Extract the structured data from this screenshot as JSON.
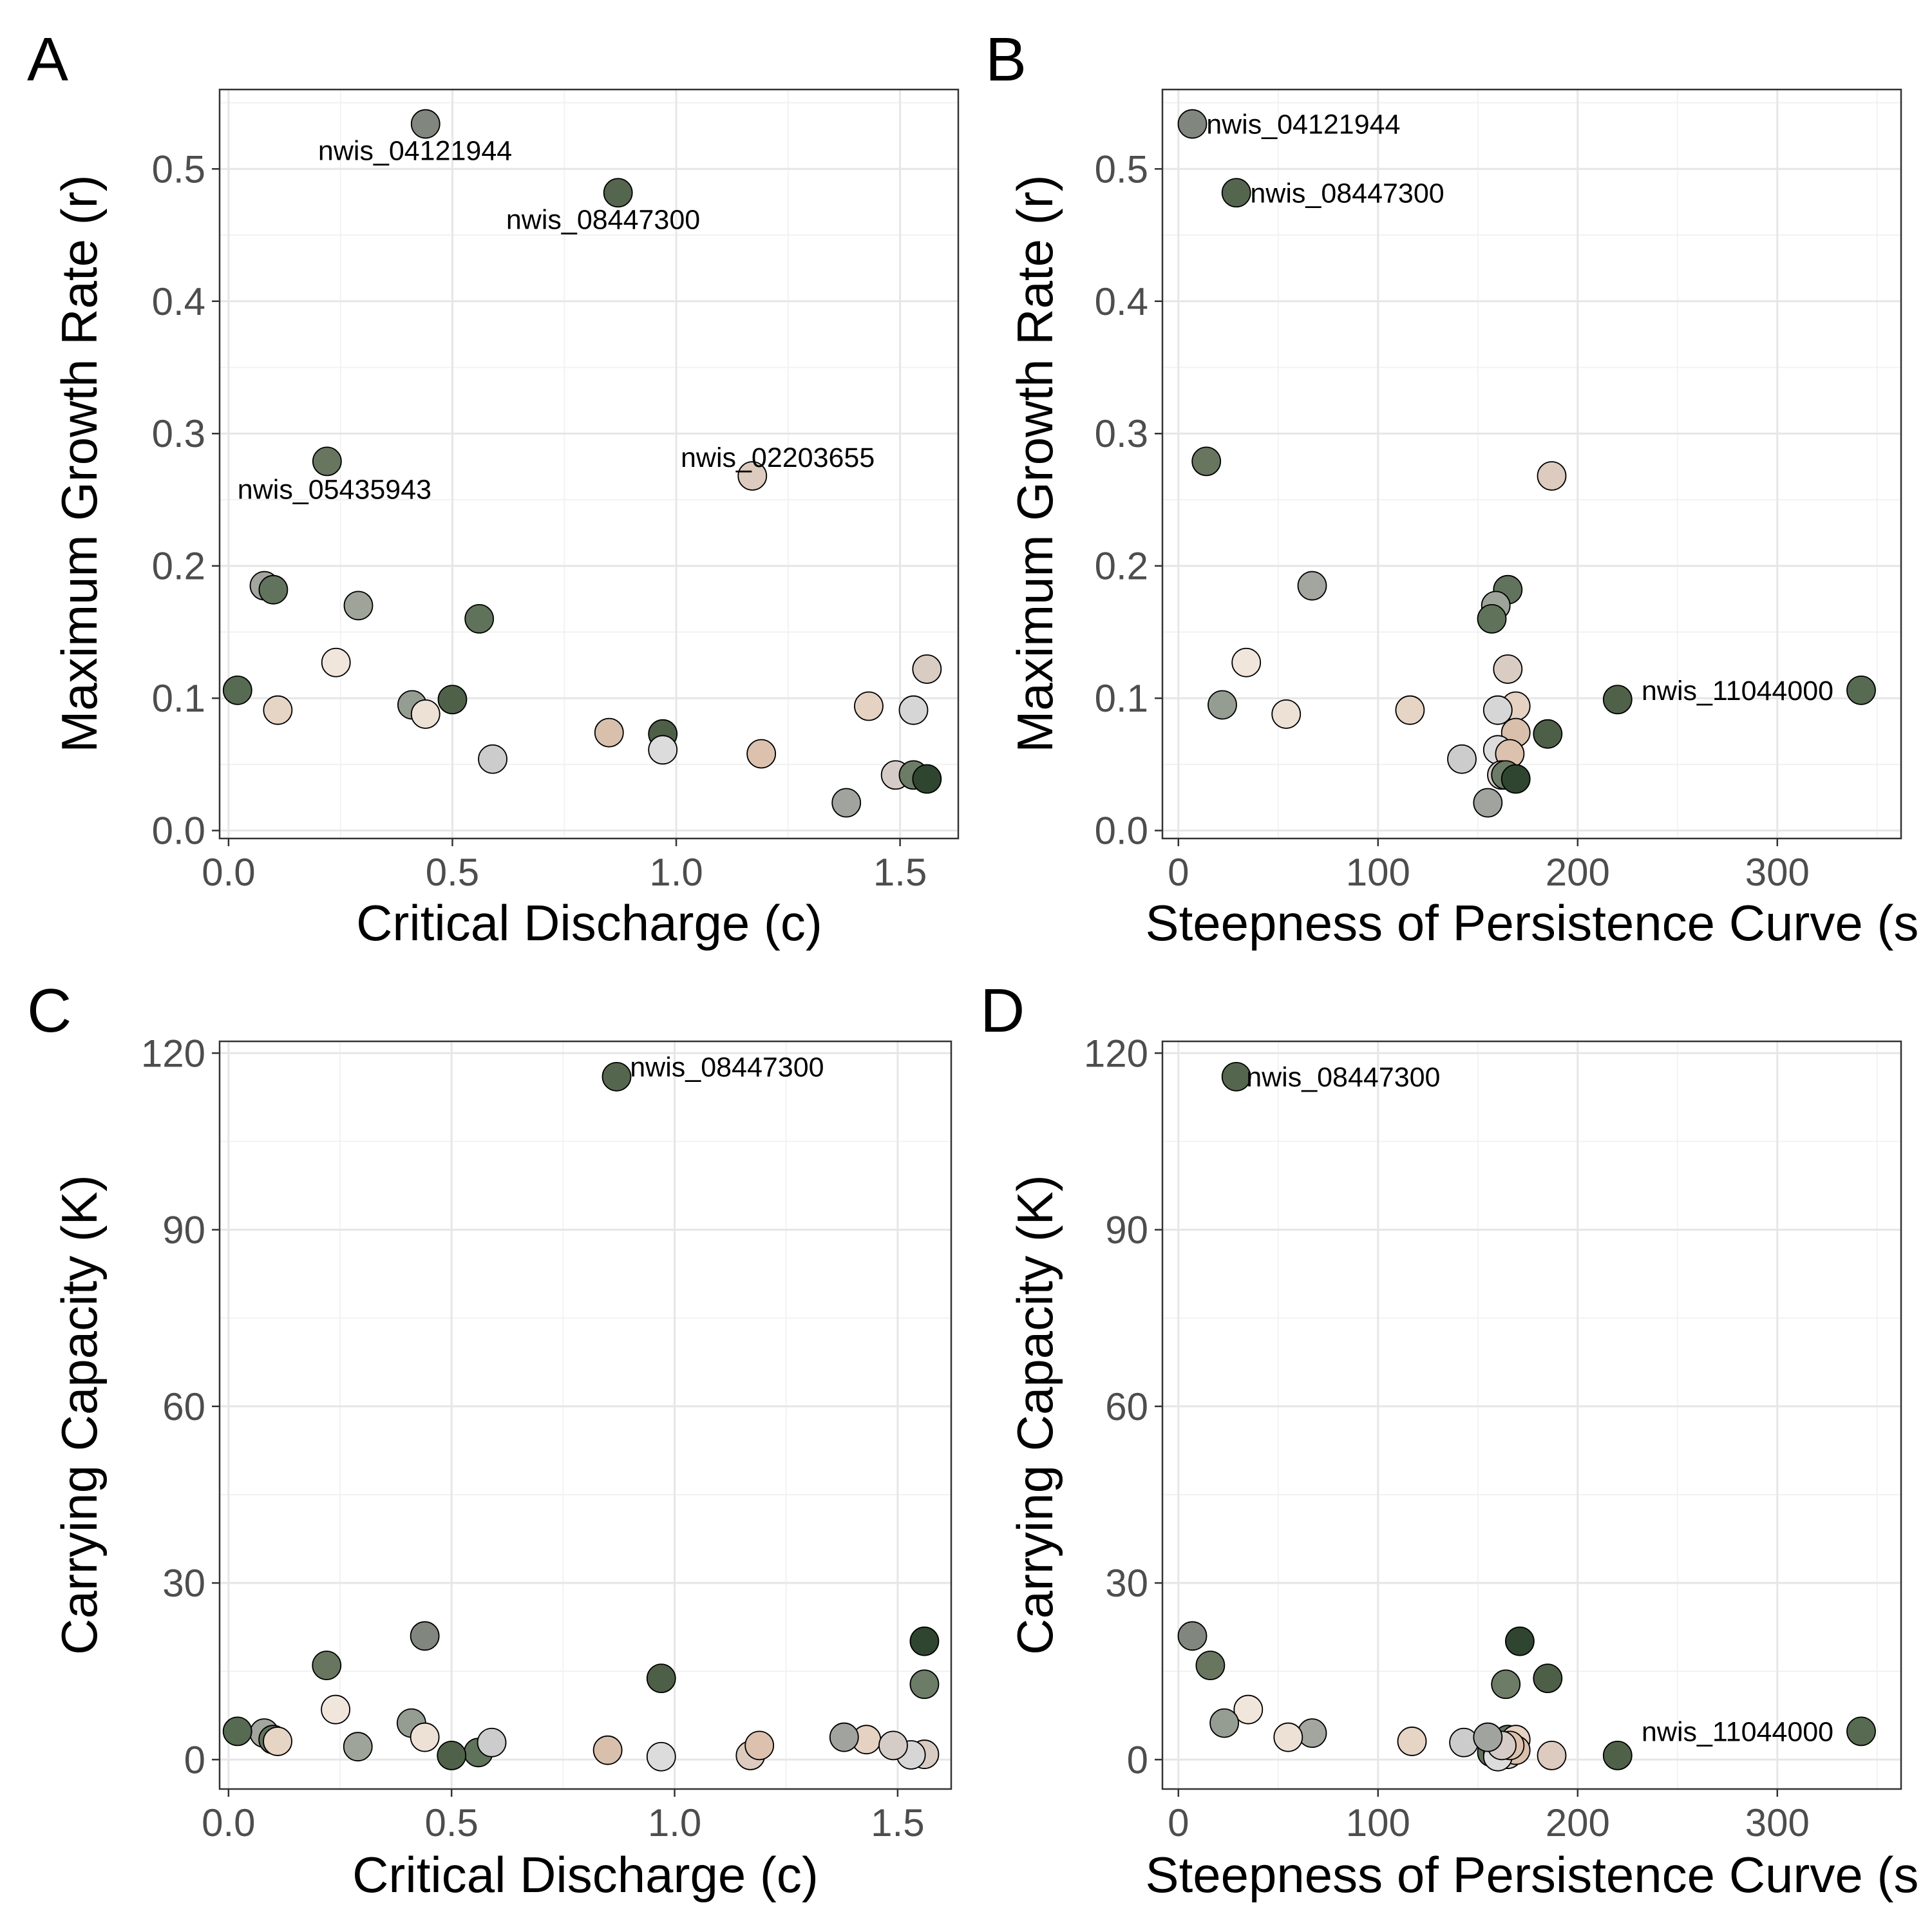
{
  "chart_data": [
    {
      "panel": "A",
      "type": "scatter",
      "xlabel": "Critical Discharge (c)",
      "ylabel": "Maximum Growth Rate (r)",
      "xlim": [
        -0.02,
        1.63
      ],
      "ylim": [
        -0.006,
        0.56
      ],
      "xticks": [
        0.0,
        0.5,
        1.0,
        1.5
      ],
      "xtick_labels": [
        "0.0",
        "0.5",
        "1.0",
        "1.5"
      ],
      "yticks": [
        0.0,
        0.1,
        0.2,
        0.3,
        0.4,
        0.5
      ],
      "ytick_labels": [
        "0.0",
        "0.1",
        "0.2",
        "0.3",
        "0.4",
        "0.5"
      ],
      "grid": true,
      "points": [
        {
          "x": 0.44,
          "y": 0.534,
          "color": "#81877f"
        },
        {
          "x": 0.87,
          "y": 0.482,
          "color": "#55664f"
        },
        {
          "x": 0.22,
          "y": 0.279,
          "color": "#68765f"
        },
        {
          "x": 1.17,
          "y": 0.268,
          "color": "#dccbbe"
        },
        {
          "x": 0.08,
          "y": 0.185,
          "color": "#a3a69f"
        },
        {
          "x": 0.1,
          "y": 0.182,
          "color": "#62735d"
        },
        {
          "x": 0.29,
          "y": 0.17,
          "color": "#9fa49b"
        },
        {
          "x": 0.56,
          "y": 0.16,
          "color": "#5f725a"
        },
        {
          "x": 0.24,
          "y": 0.127,
          "color": "#f1e6dc"
        },
        {
          "x": 1.56,
          "y": 0.122,
          "color": "#d9ccc3"
        },
        {
          "x": 0.02,
          "y": 0.106,
          "color": "#566b51"
        },
        {
          "x": 0.5,
          "y": 0.099,
          "color": "#4f6249"
        },
        {
          "x": 0.41,
          "y": 0.095,
          "color": "#959c92"
        },
        {
          "x": 1.43,
          "y": 0.094,
          "color": "#e5d2c2"
        },
        {
          "x": 0.11,
          "y": 0.091,
          "color": "#e6d4c5"
        },
        {
          "x": 1.53,
          "y": 0.091,
          "color": "#d6d6d6"
        },
        {
          "x": 0.44,
          "y": 0.088,
          "color": "#ede1d6"
        },
        {
          "x": 0.85,
          "y": 0.074,
          "color": "#d8c0ad"
        },
        {
          "x": 0.97,
          "y": 0.073,
          "color": "#4e5f48"
        },
        {
          "x": 0.97,
          "y": 0.061,
          "color": "#dcdcdc"
        },
        {
          "x": 1.19,
          "y": 0.058,
          "color": "#dcc2ae"
        },
        {
          "x": 0.59,
          "y": 0.054,
          "color": "#cbcccb"
        },
        {
          "x": 1.49,
          "y": 0.042,
          "color": "#d6ccc7"
        },
        {
          "x": 1.53,
          "y": 0.042,
          "color": "#6c7c67"
        },
        {
          "x": 1.56,
          "y": 0.039,
          "color": "#2f4530"
        },
        {
          "x": 1.38,
          "y": 0.021,
          "color": "#a1a49e"
        }
      ],
      "labels": [
        {
          "text": "nwis_04121944",
          "x": 0.2,
          "y": 0.514
        },
        {
          "text": "nwis_08447300",
          "x": 0.62,
          "y": 0.462
        },
        {
          "text": "nwis_05435943",
          "x": 0.02,
          "y": 0.258
        },
        {
          "text": "nwis_02203655",
          "x": 1.01,
          "y": 0.282
        }
      ]
    },
    {
      "panel": "B",
      "type": "scatter",
      "xlabel": "Steepness of Persistence Curve (s",
      "ylabel": "Maximum Growth Rate (r)",
      "xlim": [
        -8,
        362
      ],
      "ylim": [
        -0.006,
        0.56
      ],
      "xticks": [
        0,
        100,
        200,
        300
      ],
      "xtick_labels": [
        "0",
        "100",
        "200",
        "300"
      ],
      "yticks": [
        0.0,
        0.1,
        0.2,
        0.3,
        0.4,
        0.5
      ],
      "ytick_labels": [
        "0.0",
        "0.1",
        "0.2",
        "0.3",
        "0.4",
        "0.5"
      ],
      "grid": true,
      "points": [
        {
          "x": 7,
          "y": 0.534,
          "color": "#81877f"
        },
        {
          "x": 29,
          "y": 0.482,
          "color": "#55664f"
        },
        {
          "x": 14,
          "y": 0.279,
          "color": "#68765f"
        },
        {
          "x": 187,
          "y": 0.268,
          "color": "#dccbbe"
        },
        {
          "x": 67,
          "y": 0.185,
          "color": "#a3a69f"
        },
        {
          "x": 165,
          "y": 0.182,
          "color": "#62735d"
        },
        {
          "x": 159,
          "y": 0.17,
          "color": "#9fa49b"
        },
        {
          "x": 157,
          "y": 0.16,
          "color": "#5f725a"
        },
        {
          "x": 34,
          "y": 0.127,
          "color": "#f1e6dc"
        },
        {
          "x": 165,
          "y": 0.122,
          "color": "#d9ccc3"
        },
        {
          "x": 342,
          "y": 0.106,
          "color": "#566b51"
        },
        {
          "x": 220,
          "y": 0.099,
          "color": "#4f6249"
        },
        {
          "x": 22,
          "y": 0.095,
          "color": "#959c92"
        },
        {
          "x": 169,
          "y": 0.094,
          "color": "#e5d2c2"
        },
        {
          "x": 116,
          "y": 0.091,
          "color": "#e6d4c5"
        },
        {
          "x": 160,
          "y": 0.091,
          "color": "#d6d6d6"
        },
        {
          "x": 54,
          "y": 0.088,
          "color": "#ede1d6"
        },
        {
          "x": 169,
          "y": 0.074,
          "color": "#d8c0ad"
        },
        {
          "x": 185,
          "y": 0.073,
          "color": "#4e5f48"
        },
        {
          "x": 160,
          "y": 0.061,
          "color": "#dcdcdc"
        },
        {
          "x": 166,
          "y": 0.058,
          "color": "#dcc2ae"
        },
        {
          "x": 142,
          "y": 0.054,
          "color": "#cbcccb"
        },
        {
          "x": 162,
          "y": 0.042,
          "color": "#d6ccc7"
        },
        {
          "x": 164,
          "y": 0.042,
          "color": "#6c7c67"
        },
        {
          "x": 169,
          "y": 0.039,
          "color": "#2f4530"
        },
        {
          "x": 155,
          "y": 0.021,
          "color": "#a1a49e"
        }
      ],
      "labels": [
        {
          "text": "nwis_04121944",
          "x": 14,
          "y": 0.534
        },
        {
          "text": "nwis_08447300",
          "x": 36,
          "y": 0.482
        },
        {
          "text": "nwis_11044000",
          "x": 232,
          "y": 0.106
        }
      ]
    },
    {
      "panel": "C",
      "type": "scatter",
      "xlabel": "Critical Discharge (c)",
      "ylabel": "Carrying Capacity (K)",
      "xlim": [
        -0.02,
        1.62
      ],
      "ylim": [
        -5,
        122
      ],
      "xticks": [
        0.0,
        0.5,
        1.0,
        1.5
      ],
      "xtick_labels": [
        "0.0",
        "0.5",
        "1.0",
        "1.5"
      ],
      "yticks": [
        0,
        30,
        60,
        90,
        120
      ],
      "ytick_labels": [
        "0",
        "30",
        "60",
        "90",
        "120"
      ],
      "grid": true,
      "points": [
        {
          "x": 0.44,
          "y": 21.0,
          "color": "#81877f"
        },
        {
          "x": 0.87,
          "y": 116.0,
          "color": "#55664f"
        },
        {
          "x": 0.22,
          "y": 16.0,
          "color": "#68765f"
        },
        {
          "x": 1.17,
          "y": 0.7,
          "color": "#dccbbe"
        },
        {
          "x": 0.08,
          "y": 4.5,
          "color": "#a3a69f"
        },
        {
          "x": 0.1,
          "y": 3.4,
          "color": "#62735d"
        },
        {
          "x": 0.29,
          "y": 2.2,
          "color": "#9fa49b"
        },
        {
          "x": 0.56,
          "y": 1.2,
          "color": "#5f725a"
        },
        {
          "x": 0.24,
          "y": 8.5,
          "color": "#f1e6dc"
        },
        {
          "x": 1.56,
          "y": 0.9,
          "color": "#d9ccc3"
        },
        {
          "x": 0.02,
          "y": 4.8,
          "color": "#566b51"
        },
        {
          "x": 0.5,
          "y": 0.7,
          "color": "#4f6249"
        },
        {
          "x": 0.41,
          "y": 6.2,
          "color": "#959c92"
        },
        {
          "x": 1.43,
          "y": 3.4,
          "color": "#e5d2c2"
        },
        {
          "x": 0.11,
          "y": 3.1,
          "color": "#e6d4c5"
        },
        {
          "x": 1.53,
          "y": 0.8,
          "color": "#d6d6d6"
        },
        {
          "x": 0.44,
          "y": 3.8,
          "color": "#ede1d6"
        },
        {
          "x": 0.85,
          "y": 1.6,
          "color": "#d8c0ad"
        },
        {
          "x": 0.97,
          "y": 13.8,
          "color": "#4e5f48"
        },
        {
          "x": 0.97,
          "y": 0.5,
          "color": "#dcdcdc"
        },
        {
          "x": 1.19,
          "y": 2.4,
          "color": "#dcc2ae"
        },
        {
          "x": 0.59,
          "y": 2.9,
          "color": "#cbcccb"
        },
        {
          "x": 1.49,
          "y": 2.4,
          "color": "#d6ccc7"
        },
        {
          "x": 1.56,
          "y": 12.8,
          "color": "#6c7c67"
        },
        {
          "x": 1.56,
          "y": 20.1,
          "color": "#2f4530"
        },
        {
          "x": 1.38,
          "y": 3.8,
          "color": "#a1a49e"
        }
      ],
      "labels": [
        {
          "text": "nwis_08447300",
          "x": 0.9,
          "y": 117.7
        }
      ]
    },
    {
      "panel": "D",
      "type": "scatter",
      "xlabel": "Steepness of Persistence Curve (s",
      "ylabel": "Carrying Capacity (K)",
      "xlim": [
        -8,
        362
      ],
      "ylim": [
        -5,
        122
      ],
      "xticks": [
        0,
        100,
        200,
        300
      ],
      "xtick_labels": [
        "0",
        "100",
        "200",
        "300"
      ],
      "yticks": [
        0,
        30,
        60,
        90,
        120
      ],
      "ytick_labels": [
        "0",
        "30",
        "60",
        "90",
        "120"
      ],
      "grid": true,
      "points": [
        {
          "x": 7,
          "y": 21.0,
          "color": "#81877f"
        },
        {
          "x": 29,
          "y": 116.0,
          "color": "#55664f"
        },
        {
          "x": 16,
          "y": 16.0,
          "color": "#68765f"
        },
        {
          "x": 187,
          "y": 0.7,
          "color": "#dccbbe"
        },
        {
          "x": 67,
          "y": 4.5,
          "color": "#a3a69f"
        },
        {
          "x": 165,
          "y": 3.4,
          "color": "#62735d"
        },
        {
          "x": 159,
          "y": 2.2,
          "color": "#9fa49b"
        },
        {
          "x": 157,
          "y": 1.2,
          "color": "#5f725a"
        },
        {
          "x": 35,
          "y": 8.5,
          "color": "#f1e6dc"
        },
        {
          "x": 165,
          "y": 0.9,
          "color": "#d9ccc3"
        },
        {
          "x": 342,
          "y": 4.8,
          "color": "#566b51"
        },
        {
          "x": 220,
          "y": 0.7,
          "color": "#4f6249"
        },
        {
          "x": 23,
          "y": 6.2,
          "color": "#959c92"
        },
        {
          "x": 169,
          "y": 3.4,
          "color": "#e5d2c2"
        },
        {
          "x": 117,
          "y": 3.1,
          "color": "#e6d4c5"
        },
        {
          "x": 160,
          "y": 0.8,
          "color": "#d6d6d6"
        },
        {
          "x": 55,
          "y": 3.8,
          "color": "#ede1d6"
        },
        {
          "x": 169,
          "y": 1.6,
          "color": "#d8c0ad"
        },
        {
          "x": 185,
          "y": 13.8,
          "color": "#4e5f48"
        },
        {
          "x": 160,
          "y": 0.5,
          "color": "#dcdcdc"
        },
        {
          "x": 166,
          "y": 2.4,
          "color": "#dcc2ae"
        },
        {
          "x": 143,
          "y": 2.9,
          "color": "#cbcccb"
        },
        {
          "x": 162,
          "y": 2.4,
          "color": "#d6ccc7"
        },
        {
          "x": 164,
          "y": 12.8,
          "color": "#6c7c67"
        },
        {
          "x": 171,
          "y": 20.1,
          "color": "#2f4530"
        },
        {
          "x": 155,
          "y": 3.8,
          "color": "#a1a49e"
        }
      ],
      "labels": [
        {
          "text": "nwis_08447300",
          "x": 34,
          "y": 116.0
        },
        {
          "text": "nwis_11044000",
          "x": 232,
          "y": 4.8
        }
      ]
    }
  ]
}
